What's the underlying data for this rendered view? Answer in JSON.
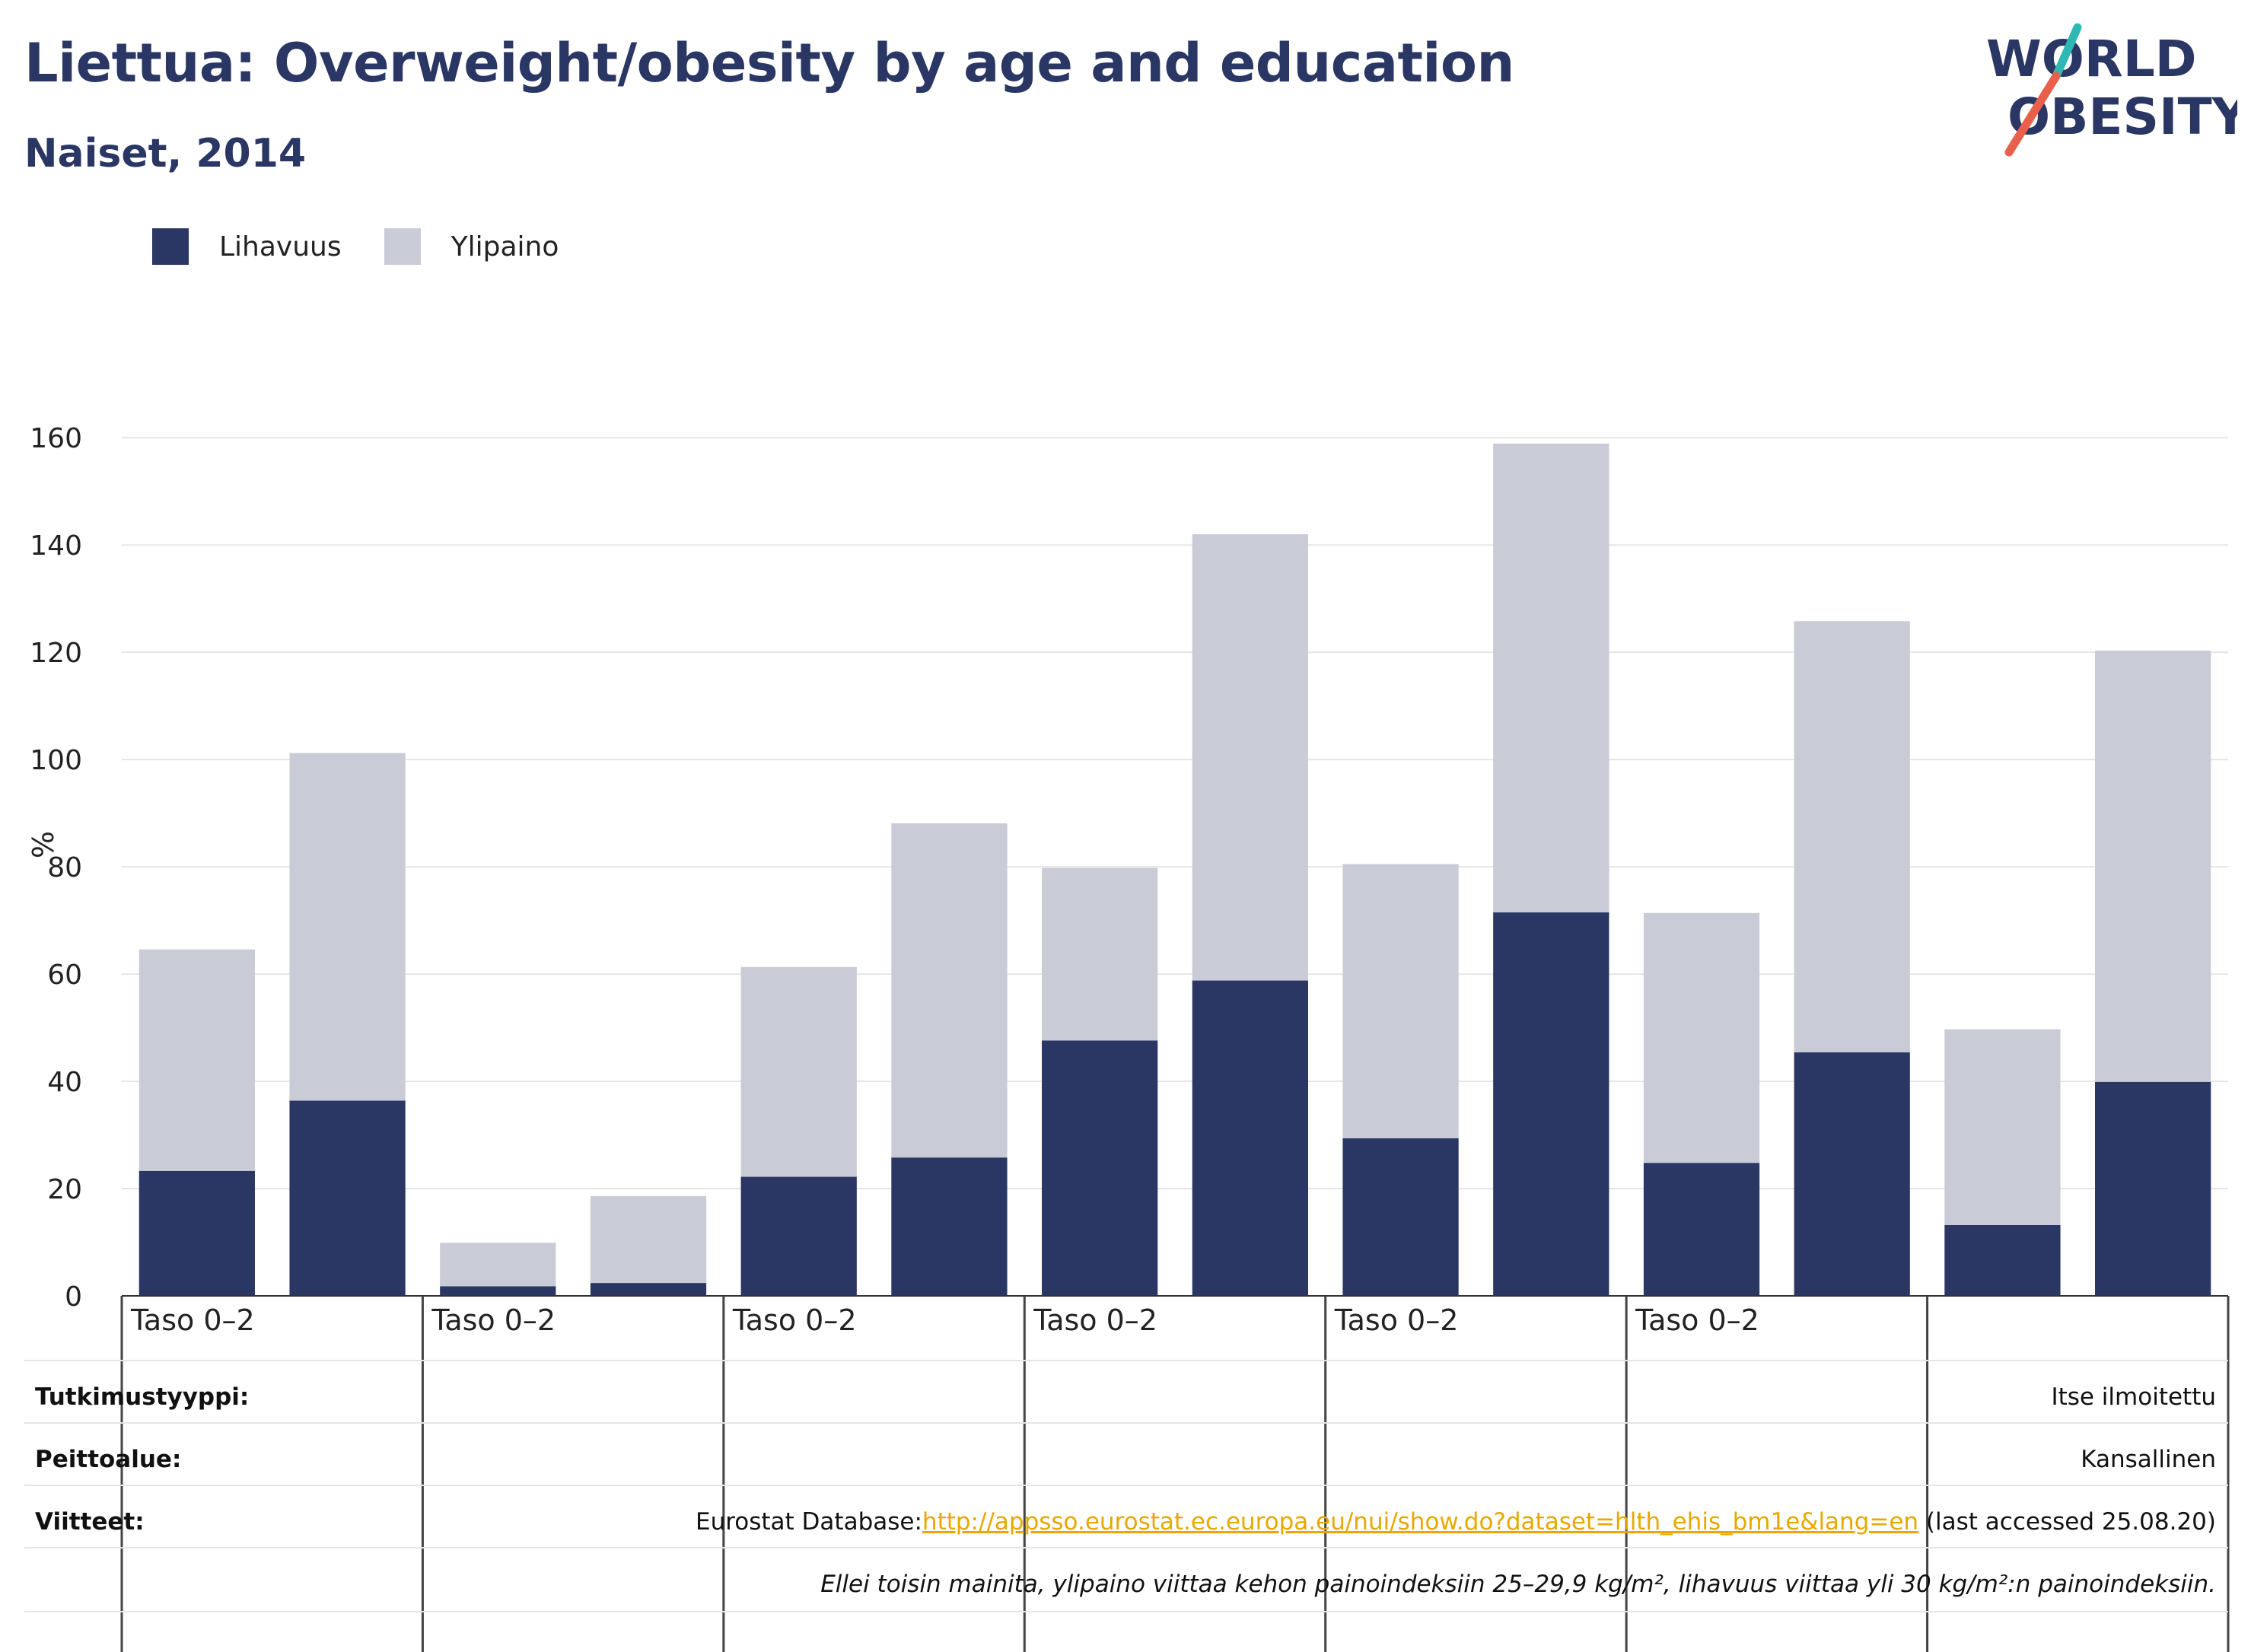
{
  "header": {
    "title": "Liettua: Overweight/obesity by age and education",
    "subtitle": "Naiset, 2014"
  },
  "logo": {
    "line1": "WORLD",
    "line2": "OBESITY",
    "colors": {
      "text": "#2a3663",
      "slash_teal": "#2fb8b3",
      "slash_red": "#e8604c"
    }
  },
  "legend": [
    {
      "label": "Lihavuus",
      "color": "#2a3663"
    },
    {
      "label": "Ylipaino",
      "color": "#c9cbd6"
    }
  ],
  "chart_data": {
    "type": "bar",
    "stacked": true,
    "ylabel": "%",
    "ylim": [
      0,
      165
    ],
    "yticks": [
      0,
      20,
      40,
      60,
      80,
      100,
      120,
      140,
      160
    ],
    "grid": true,
    "legend_position": "top-left",
    "group_labels": [
      "Taso 0–2",
      "Taso 0–2",
      "Taso 0–2",
      "Taso 0–2",
      "Taso 0–2",
      "Taso 0–2",
      ""
    ],
    "bars_per_group": 2,
    "series": [
      {
        "name": "Lihavuus",
        "color": "#2a3663",
        "values": [
          23.3,
          36.4,
          1.8,
          2.4,
          22.2,
          25.8,
          47.6,
          58.8,
          29.4,
          71.5,
          24.8,
          45.4,
          13.2,
          39.9
        ]
      },
      {
        "name": "Ylipaino",
        "color": "#c9cbd6",
        "values": [
          41.3,
          64.8,
          8.1,
          16.2,
          39.1,
          62.3,
          32.2,
          83.2,
          51.1,
          87.4,
          46.6,
          80.4,
          36.5,
          80.4
        ]
      }
    ]
  },
  "info": {
    "study_type_label": "Tutkimustyyppi:",
    "study_type_value": "Itse ilmoitettu",
    "coverage_label": "Peittoalue:",
    "coverage_value": "Kansallinen",
    "references_label": "Viitteet:",
    "references_prefix": "Eurostat Database:",
    "references_link": "http://appsso.eurostat.ec.europa.eu/nui/show.do?dataset=hlth_ehis_bm1e&lang=en",
    "references_suffix": " (last accessed 25.08.20)",
    "note": "Ellei toisin mainita, ylipaino viittaa kehon painoindeksiin 25–29,9 kg/m², lihavuus viittaa yli 30 kg/m²:n painoindeksiin."
  }
}
